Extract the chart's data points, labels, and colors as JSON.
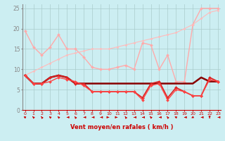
{
  "xlabel": "Vent moyen/en rafales ( km/h )",
  "bg_color": "#cceef2",
  "grid_color": "#aacccc",
  "ylim": [
    0,
    26
  ],
  "yticks": [
    0,
    5,
    10,
    15,
    20,
    25
  ],
  "xticks": [
    0,
    1,
    2,
    3,
    4,
    5,
    6,
    7,
    8,
    9,
    10,
    11,
    12,
    13,
    14,
    15,
    16,
    17,
    18,
    19,
    20,
    21,
    22,
    23
  ],
  "series": [
    {
      "name": "rafales_max",
      "y": [
        19.5,
        15.5,
        13.5,
        15.5,
        18.5,
        15.0,
        15.0,
        13.0,
        10.5,
        10.0,
        10.0,
        10.5,
        11.0,
        10.0,
        16.5,
        16.0,
        10.0,
        13.5,
        7.0,
        7.0,
        21.0,
        25.0,
        25.0,
        25.0
      ],
      "color": "#ffaaaa",
      "lw": 1.0,
      "marker": "D",
      "ms": 2.0
    },
    {
      "name": "rafales_trend",
      "y": [
        8.5,
        9.5,
        10.5,
        11.5,
        12.5,
        13.5,
        14.0,
        14.5,
        15.0,
        15.0,
        15.0,
        15.5,
        16.0,
        16.5,
        17.0,
        17.5,
        18.0,
        18.5,
        19.0,
        20.0,
        21.0,
        22.5,
        24.0,
        24.5
      ],
      "color": "#ffbbbb",
      "lw": 0.8,
      "marker": "D",
      "ms": 1.5
    },
    {
      "name": "vent_moyen",
      "y": [
        8.5,
        6.5,
        6.5,
        8.0,
        8.5,
        8.0,
        6.5,
        6.5,
        6.5,
        6.5,
        6.5,
        6.5,
        6.5,
        6.5,
        6.5,
        6.5,
        6.5,
        6.5,
        6.5,
        6.5,
        6.5,
        8.0,
        7.0,
        7.0
      ],
      "color": "#880000",
      "lw": 1.8,
      "marker": null,
      "ms": 0
    },
    {
      "name": "vent_inst",
      "y": [
        8.5,
        6.5,
        6.5,
        8.0,
        8.5,
        8.0,
        6.5,
        6.5,
        4.5,
        4.5,
        4.5,
        4.5,
        4.5,
        4.5,
        3.0,
        6.5,
        7.0,
        3.0,
        5.5,
        4.5,
        3.5,
        3.5,
        8.0,
        7.0
      ],
      "color": "#dd2222",
      "lw": 1.2,
      "marker": "D",
      "ms": 2.0
    },
    {
      "name": "vent_min",
      "y": [
        8.5,
        6.5,
        6.5,
        7.0,
        8.0,
        7.5,
        7.0,
        6.0,
        4.5,
        4.5,
        4.5,
        4.5,
        4.5,
        4.5,
        2.5,
        6.0,
        6.5,
        2.5,
        5.0,
        4.5,
        3.5,
        3.5,
        7.5,
        7.0
      ],
      "color": "#ff4444",
      "lw": 1.0,
      "marker": "D",
      "ms": 2.0
    }
  ],
  "wind_dirs": [
    225,
    210,
    200,
    215,
    210,
    270,
    200,
    270,
    270,
    270,
    90,
    90,
    200,
    270,
    270,
    210,
    270,
    200,
    225,
    270,
    315,
    270,
    0,
    270
  ],
  "arrow_color": "#cc0000"
}
